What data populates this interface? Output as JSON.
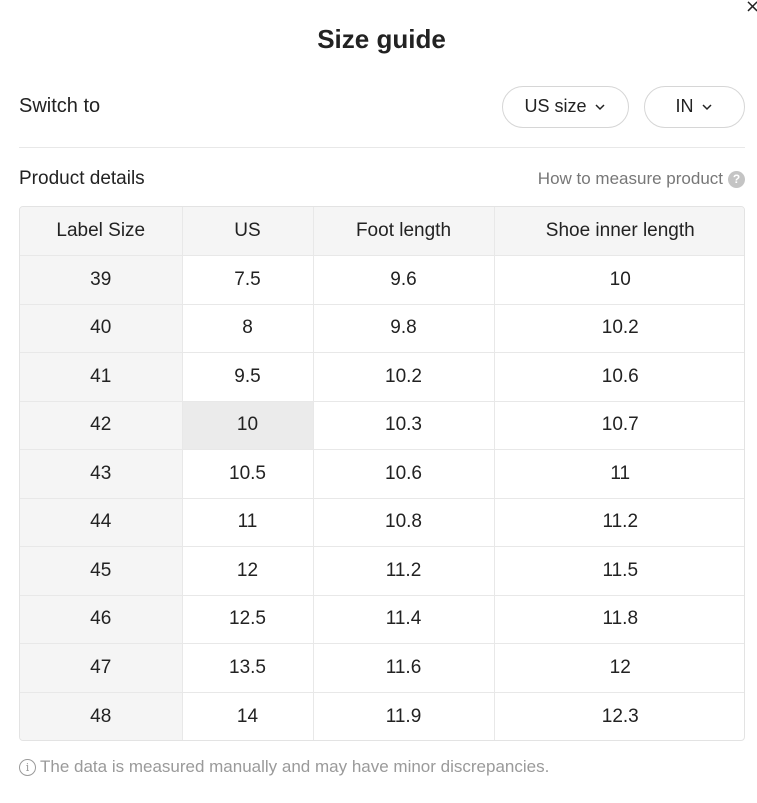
{
  "title": "Size guide",
  "close_icon": "×",
  "switch": {
    "label": "Switch to",
    "size_system": "US size",
    "unit": "IN"
  },
  "details": {
    "title": "Product details",
    "measure_link": "How to measure product",
    "help_icon": "?"
  },
  "table": {
    "headers": [
      "Label Size",
      "US",
      "Foot length",
      "Shoe inner length"
    ],
    "rows": [
      [
        "39",
        "7.5",
        "9.6",
        "10"
      ],
      [
        "40",
        "8",
        "9.8",
        "10.2"
      ],
      [
        "41",
        "9.5",
        "10.2",
        "10.6"
      ],
      [
        "42",
        "10",
        "10.3",
        "10.7"
      ],
      [
        "43",
        "10.5",
        "10.6",
        "11"
      ],
      [
        "44",
        "11",
        "10.8",
        "11.2"
      ],
      [
        "45",
        "12",
        "11.2",
        "11.5"
      ],
      [
        "46",
        "12.5",
        "11.4",
        "11.8"
      ],
      [
        "47",
        "13.5",
        "11.6",
        "12"
      ],
      [
        "48",
        "14",
        "11.9",
        "12.3"
      ]
    ],
    "highlighted_row": 3,
    "highlighted_col": 1
  },
  "footnote": {
    "icon": "i",
    "text": "The data is measured manually and may have minor discrepancies."
  },
  "colors": {
    "text": "#222222",
    "muted": "#9a9a9a",
    "header_bg": "#f5f5f5",
    "highlight_bg": "#ebebeb",
    "border": "#e8e8e8"
  }
}
